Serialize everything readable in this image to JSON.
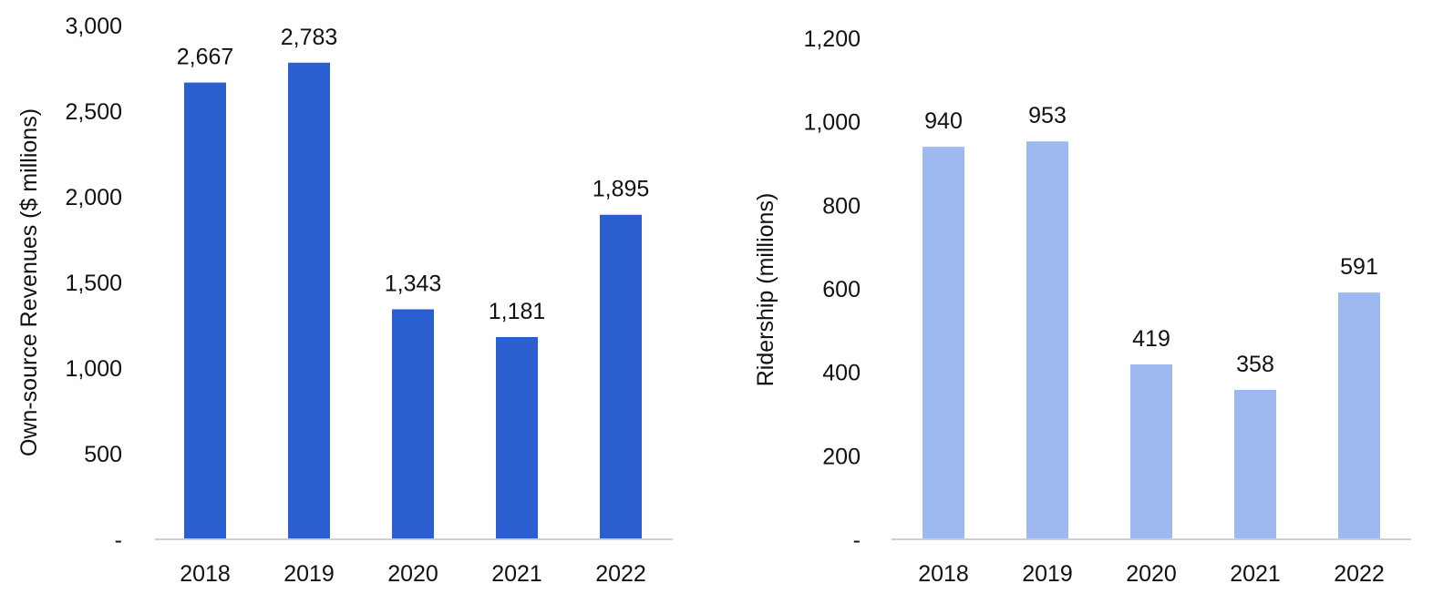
{
  "chart_data": [
    {
      "type": "bar",
      "categories": [
        "2018",
        "2019",
        "2020",
        "2021",
        "2022"
      ],
      "values": [
        2667,
        2783,
        1343,
        1181,
        1895
      ],
      "value_labels": [
        "2,667",
        "2,783",
        "1,343",
        "1,181",
        "1,895"
      ],
      "title": "",
      "xlabel": "",
      "ylabel": "Own-source Revenues ($ millions)",
      "ylim": [
        0,
        3000
      ],
      "yticks": [
        0,
        500,
        1000,
        1500,
        2000,
        2500,
        3000
      ],
      "ytick_labels": [
        "-",
        "500",
        "1,000",
        "1,500",
        "2,000",
        "2,500",
        "3,000"
      ],
      "grid": false,
      "color": "#2B5FD0"
    },
    {
      "type": "bar",
      "categories": [
        "2018",
        "2019",
        "2020",
        "2021",
        "2022"
      ],
      "values": [
        940,
        953,
        419,
        358,
        591
      ],
      "value_labels": [
        "940",
        "953",
        "419",
        "358",
        "591"
      ],
      "title": "",
      "xlabel": "",
      "ylabel": "Ridership (millions)",
      "ylim": [
        0,
        1200
      ],
      "yticks": [
        0,
        200,
        400,
        600,
        800,
        1000,
        1200
      ],
      "ytick_labels": [
        "-",
        "200",
        "400",
        "600",
        "800",
        "1,000",
        "1,200"
      ],
      "grid": false,
      "color": "#9DB9F0"
    }
  ]
}
